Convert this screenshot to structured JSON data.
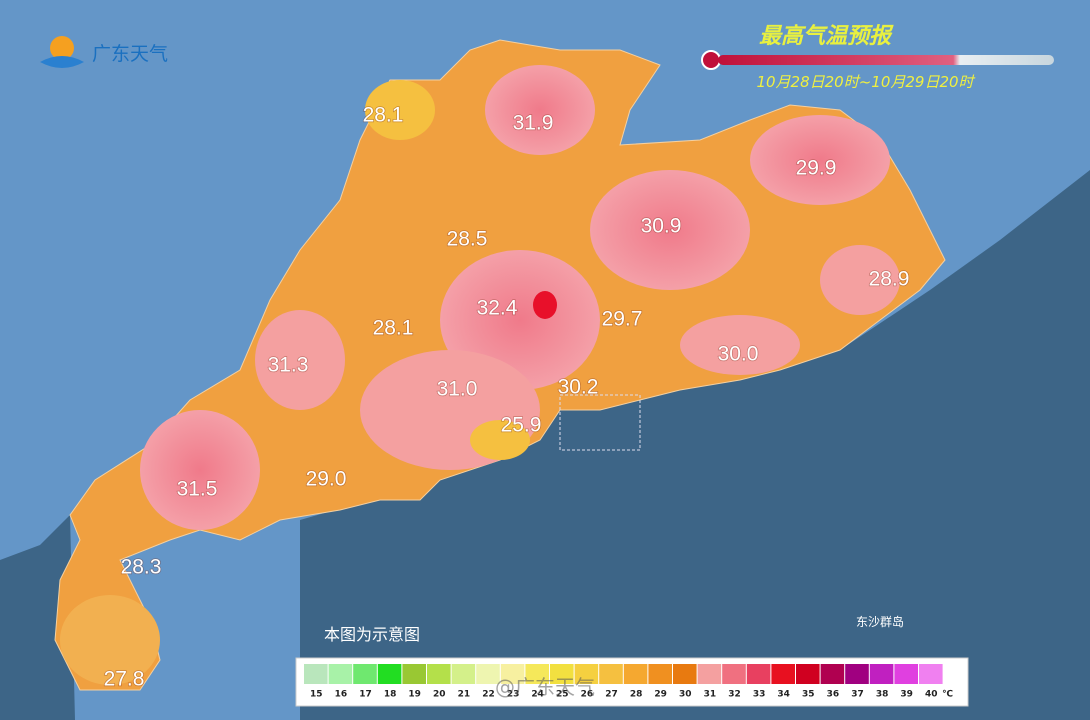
{
  "logo": "广东天气",
  "title": "最高气温预报",
  "period": "10月28日20时~10月29日20时",
  "note": "本图为示意图",
  "island_label": "东沙群岛",
  "watermark": "@广东天气",
  "stations": [
    "28.1",
    "31.9",
    "29.9",
    "30.9",
    "28.5",
    "28.9",
    "32.4",
    "29.7",
    "28.1",
    "31.3",
    "30.0",
    "31.0",
    "30.2",
    "25.9",
    "31.5",
    "29.0",
    "28.3",
    "27.8"
  ],
  "legend": {
    "values": [
      15,
      16,
      17,
      18,
      19,
      20,
      21,
      22,
      23,
      24,
      25,
      26,
      27,
      28,
      29,
      30,
      31,
      32,
      33,
      34,
      35,
      36,
      37,
      38,
      39,
      40
    ],
    "colors": [
      "#b9e6bc",
      "#a8f2a8",
      "#6fe86f",
      "#22dd22",
      "#99c833",
      "#b4e04a",
      "#d4f08a",
      "#eef5b0",
      "#f7f0a0",
      "#f5e85a",
      "#f2e040",
      "#f5d040",
      "#f5c040",
      "#f5a830",
      "#f09020",
      "#e87a10",
      "#f4a0a0",
      "#f07080",
      "#e84060",
      "#e81020",
      "#d00020",
      "#b00050",
      "#a00080",
      "#c020c0",
      "#e040e0",
      "#f080f0"
    ],
    "unit": "℃"
  }
}
